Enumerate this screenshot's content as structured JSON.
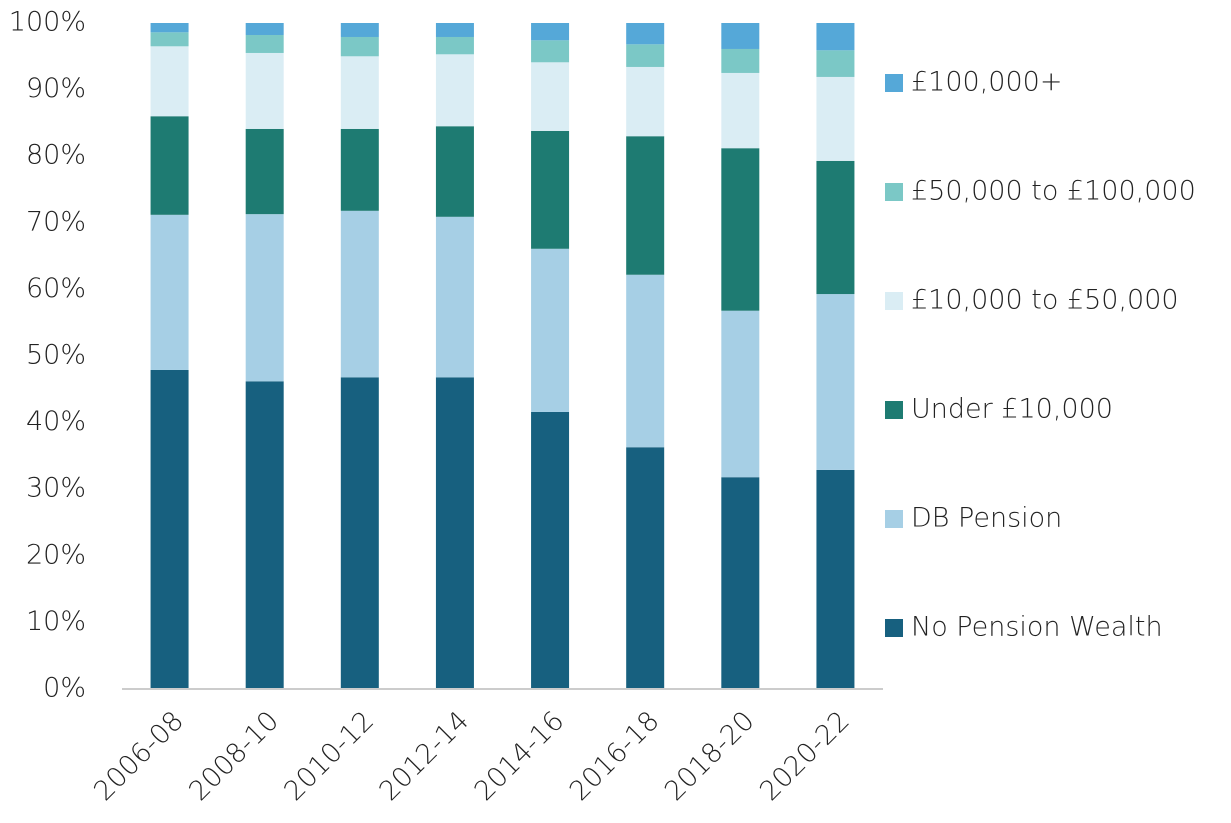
{
  "chart_data": {
    "type": "stacked_bar",
    "categories": [
      "2006-08",
      "2008-10",
      "2010-12",
      "2012-14",
      "2014-16",
      "2016-18",
      "2018-20",
      "2020-22"
    ],
    "series": [
      {
        "name": "No Pension Wealth",
        "color": "#17607f",
        "values": [
          47.9,
          46.2,
          46.8,
          46.8,
          41.6,
          36.3,
          31.8,
          32.9
        ]
      },
      {
        "name": "DB Pension",
        "color": "#a6cfe5",
        "values": [
          23.3,
          25.1,
          25.0,
          24.1,
          24.5,
          25.9,
          25.0,
          26.4
        ]
      },
      {
        "name": "Under £10,000",
        "color": "#1e7b72",
        "values": [
          14.8,
          12.8,
          12.3,
          13.6,
          17.7,
          20.8,
          24.4,
          20.0
        ]
      },
      {
        "name": "£10,000 to £50,000",
        "color": "#daedf4",
        "values": [
          10.5,
          11.4,
          10.9,
          10.8,
          10.3,
          10.4,
          11.3,
          12.6
        ]
      },
      {
        "name": "£50,000 to £100,000",
        "color": "#7bc8c6",
        "values": [
          2.1,
          2.7,
          2.9,
          2.6,
          3.3,
          3.4,
          3.6,
          4.0
        ]
      },
      {
        "name": "£100,000+",
        "color": "#55a8d8",
        "values": [
          1.4,
          1.8,
          2.1,
          2.1,
          2.6,
          3.2,
          3.9,
          4.1
        ]
      }
    ],
    "ylim": [
      0,
      100
    ],
    "yticks": [
      {
        "value": 0,
        "label": "0%"
      },
      {
        "value": 10,
        "label": "10%"
      },
      {
        "value": 20,
        "label": "20%"
      },
      {
        "value": 30,
        "label": "30%"
      },
      {
        "value": 40,
        "label": "40%"
      },
      {
        "value": 50,
        "label": "50%"
      },
      {
        "value": 60,
        "label": "60%"
      },
      {
        "value": 70,
        "label": "70%"
      },
      {
        "value": 80,
        "label": "80%"
      },
      {
        "value": 90,
        "label": "90%"
      },
      {
        "value": 100,
        "label": "100%"
      }
    ],
    "legend": "right"
  }
}
